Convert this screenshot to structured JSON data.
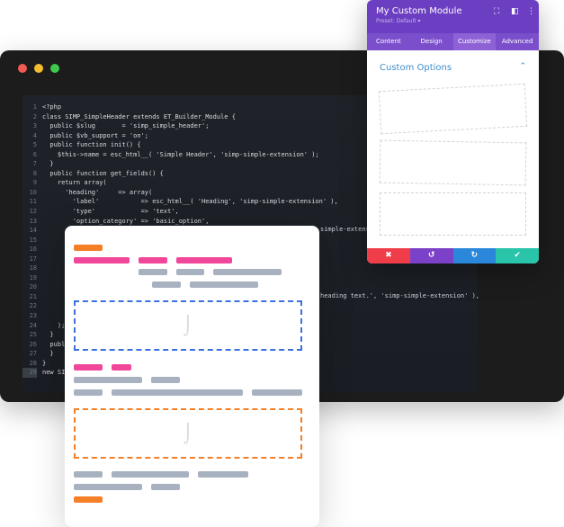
{
  "editor": {
    "window_dots": [
      "#ef5b52",
      "#f5bd2e",
      "#3ec94d"
    ],
    "lines": [
      {
        "n": "1",
        "text": "<?php"
      },
      {
        "n": "2",
        "text": "class SIMP_SimpleHeader extends ET_Builder_Module {"
      },
      {
        "n": "3",
        "text": "  public $slug       = 'simp_simple_header';"
      },
      {
        "n": "4",
        "text": "  public $vb_support = 'on';"
      },
      {
        "n": "5",
        "text": "  public function init() {"
      },
      {
        "n": "6",
        "text": "    $this->name = esc_html__( 'Simple Header', 'simp-simple-extension' );"
      },
      {
        "n": "7",
        "text": "  }"
      },
      {
        "n": "8",
        "text": "  public function get_fields() {"
      },
      {
        "n": "9",
        "text": "    return array("
      },
      {
        "n": "10",
        "text": "      'heading'     => array("
      },
      {
        "n": "11",
        "text": "        'label'           => esc_html__( 'Heading', 'simp-simple-extension' ),"
      },
      {
        "n": "12",
        "text": "        'type'            => 'text',"
      },
      {
        "n": "13",
        "text": "        'option_category' => 'basic_option',"
      },
      {
        "n": "14",
        "text": ""
      },
      {
        "n": "15",
        "text": ""
      },
      {
        "n": "16",
        "text": "      ["
      },
      {
        "n": "17",
        "text": "      '"
      },
      {
        "n": "18",
        "text": ""
      },
      {
        "n": "19",
        "text": ""
      },
      {
        "n": "20",
        "text": ""
      },
      {
        "n": "21",
        "text": ""
      },
      {
        "n": "22",
        "text": ""
      },
      {
        "n": "23",
        "text": "      ["
      },
      {
        "n": "24",
        "text": "    );"
      },
      {
        "n": "25",
        "text": "  }"
      },
      {
        "n": "26",
        "text": "  public"
      },
      {
        "n": "27",
        "text": "  }"
      },
      {
        "n": "28",
        "text": "}"
      },
      {
        "n": "29",
        "text": "new SIMP_"
      }
    ],
    "fragment_14": "simple-extension",
    "fragment_21": "heading text.', 'simp-simple-extension' ),"
  },
  "panel": {
    "title": "My Custom Module",
    "preset": "Preset: Default ▾",
    "header_icons": [
      "focus-icon",
      "sidebar-icon",
      "more-icon"
    ],
    "tabs": [
      "Content",
      "Design",
      "Customize",
      "Advanced"
    ],
    "active_tab": "Customize",
    "section_title": "Custom Options",
    "footer_colors": {
      "cancel": "#ef3e4a",
      "undo": "#7b41c8",
      "redo": "#2b87da",
      "save": "#29c4a9"
    },
    "accent": "#6c3ec1"
  },
  "card": {
    "colors": {
      "orange": "#f47f27",
      "pink": "#f0479a",
      "gray": "#a7b1c0",
      "blue_dash": "#3b6fe0",
      "orange_dash": "#f47f27"
    }
  }
}
